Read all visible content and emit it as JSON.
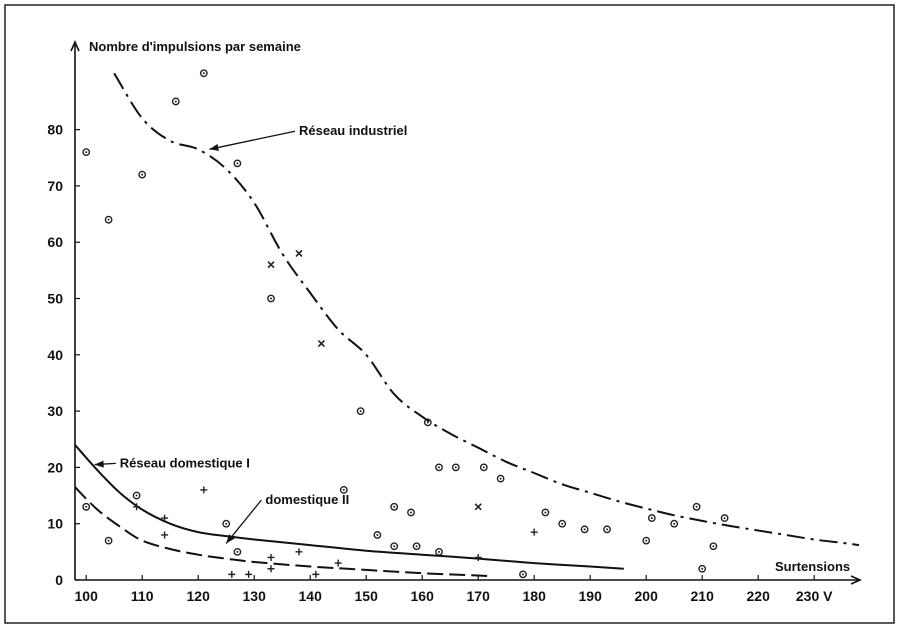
{
  "chart_data": {
    "type": "scatter",
    "title": "",
    "ylabel": "Nombre d'impulsions par semaine",
    "xlabel": "Surtensions",
    "x_unit": "V",
    "xlim": [
      98,
      240
    ],
    "ylim": [
      0,
      95
    ],
    "xticks": [
      100,
      110,
      120,
      130,
      140,
      150,
      160,
      170,
      180,
      190,
      200,
      210,
      220,
      230
    ],
    "yticks": [
      0,
      10,
      20,
      30,
      40,
      50,
      60,
      70,
      80
    ],
    "grid": false,
    "legend": "none",
    "curves": [
      {
        "name": "Réseau industriel",
        "style": "dash-dot",
        "points": [
          [
            105,
            90
          ],
          [
            110,
            82
          ],
          [
            115,
            78
          ],
          [
            120,
            76.5
          ],
          [
            125,
            73
          ],
          [
            130,
            67
          ],
          [
            135,
            58
          ],
          [
            140,
            51
          ],
          [
            145,
            44.5
          ],
          [
            150,
            40
          ],
          [
            155,
            33
          ],
          [
            160,
            29
          ],
          [
            165,
            26
          ],
          [
            170,
            23.5
          ],
          [
            175,
            21
          ],
          [
            180,
            19
          ],
          [
            185,
            17
          ],
          [
            190,
            15.5
          ],
          [
            195,
            14
          ],
          [
            200,
            12.7
          ],
          [
            205,
            11.5
          ],
          [
            210,
            10.5
          ],
          [
            215,
            9.6
          ],
          [
            220,
            8.8
          ],
          [
            225,
            8
          ],
          [
            230,
            7.2
          ],
          [
            235,
            6.6
          ],
          [
            238,
            6.2
          ]
        ]
      },
      {
        "name": "Réseau domestique I",
        "style": "solid",
        "points": [
          [
            98,
            24
          ],
          [
            102,
            19.5
          ],
          [
            106,
            15.5
          ],
          [
            110,
            12.5
          ],
          [
            115,
            10
          ],
          [
            120,
            8.5
          ],
          [
            125,
            7.8
          ],
          [
            130,
            7.2
          ],
          [
            140,
            6.2
          ],
          [
            150,
            5.2
          ],
          [
            160,
            4.5
          ],
          [
            170,
            3.8
          ],
          [
            180,
            3
          ],
          [
            190,
            2.4
          ],
          [
            196,
            2
          ]
        ]
      },
      {
        "name": "domestique II",
        "style": "dashed",
        "points": [
          [
            98,
            16.5
          ],
          [
            102,
            12.5
          ],
          [
            106,
            9.5
          ],
          [
            110,
            7
          ],
          [
            115,
            5.5
          ],
          [
            120,
            4.5
          ],
          [
            125,
            3.8
          ],
          [
            130,
            3.2
          ],
          [
            140,
            2.4
          ],
          [
            150,
            1.8
          ],
          [
            160,
            1.2
          ],
          [
            170,
            0.8
          ],
          [
            172,
            0.7
          ]
        ]
      }
    ],
    "annotations": [
      {
        "text": "Réseau industriel",
        "label_at": [
          138,
          79
        ],
        "arrow_to": [
          122,
          76.5
        ]
      },
      {
        "text": "Réseau domestique I",
        "label_at": [
          106,
          20
        ],
        "arrow_to": [
          101.5,
          20.5
        ]
      },
      {
        "text": "domestique II",
        "label_at": [
          132,
          13.5
        ],
        "arrow_to": [
          125,
          6.5
        ]
      }
    ],
    "markers": [
      {
        "x": 100,
        "y": 76,
        "m": "o"
      },
      {
        "x": 104,
        "y": 64,
        "m": "o"
      },
      {
        "x": 110,
        "y": 72,
        "m": "o"
      },
      {
        "x": 116,
        "y": 85,
        "m": "o"
      },
      {
        "x": 121,
        "y": 90,
        "m": "o"
      },
      {
        "x": 127,
        "y": 74,
        "m": "o"
      },
      {
        "x": 133,
        "y": 56,
        "m": "x"
      },
      {
        "x": 133,
        "y": 50,
        "m": "o"
      },
      {
        "x": 138,
        "y": 58,
        "m": "x"
      },
      {
        "x": 142,
        "y": 42,
        "m": "x"
      },
      {
        "x": 149,
        "y": 30,
        "m": "o"
      },
      {
        "x": 161,
        "y": 28,
        "m": "o"
      },
      {
        "x": 163,
        "y": 20,
        "m": "o"
      },
      {
        "x": 166,
        "y": 20,
        "m": "o"
      },
      {
        "x": 171,
        "y": 20,
        "m": "o"
      },
      {
        "x": 174,
        "y": 18,
        "m": "o"
      },
      {
        "x": 170,
        "y": 13,
        "m": "x"
      },
      {
        "x": 182,
        "y": 12,
        "m": "o"
      },
      {
        "x": 185,
        "y": 10,
        "m": "o"
      },
      {
        "x": 189,
        "y": 9,
        "m": "o"
      },
      {
        "x": 193,
        "y": 9,
        "m": "o"
      },
      {
        "x": 200,
        "y": 7,
        "m": "o"
      },
      {
        "x": 201,
        "y": 11,
        "m": "o"
      },
      {
        "x": 205,
        "y": 10,
        "m": "o"
      },
      {
        "x": 209,
        "y": 13,
        "m": "o"
      },
      {
        "x": 210,
        "y": 2,
        "m": "o"
      },
      {
        "x": 212,
        "y": 6,
        "m": "o"
      },
      {
        "x": 214,
        "y": 11,
        "m": "o"
      },
      {
        "x": 100,
        "y": 13,
        "m": "o"
      },
      {
        "x": 104,
        "y": 7,
        "m": "o"
      },
      {
        "x": 109,
        "y": 15,
        "m": "o"
      },
      {
        "x": 109,
        "y": 13,
        "m": "+"
      },
      {
        "x": 114,
        "y": 11,
        "m": "+"
      },
      {
        "x": 114,
        "y": 8,
        "m": "+"
      },
      {
        "x": 121,
        "y": 16,
        "m": "+"
      },
      {
        "x": 125,
        "y": 10,
        "m": "o"
      },
      {
        "x": 146,
        "y": 16,
        "m": "o"
      },
      {
        "x": 152,
        "y": 8,
        "m": "o"
      },
      {
        "x": 155,
        "y": 13,
        "m": "o"
      },
      {
        "x": 155,
        "y": 6,
        "m": "o"
      },
      {
        "x": 158,
        "y": 12,
        "m": "o"
      },
      {
        "x": 159,
        "y": 6,
        "m": "o"
      },
      {
        "x": 163,
        "y": 5,
        "m": "o"
      },
      {
        "x": 170,
        "y": 4,
        "m": "+"
      },
      {
        "x": 178,
        "y": 1,
        "m": "o"
      },
      {
        "x": 180,
        "y": 8.5,
        "m": "+"
      },
      {
        "x": 127,
        "y": 5,
        "m": "o"
      },
      {
        "x": 126,
        "y": 1,
        "m": "+"
      },
      {
        "x": 129,
        "y": 1,
        "m": "+"
      },
      {
        "x": 133,
        "y": 2,
        "m": "+"
      },
      {
        "x": 133,
        "y": 4,
        "m": "+"
      },
      {
        "x": 138,
        "y": 5,
        "m": "+"
      },
      {
        "x": 141,
        "y": 1,
        "m": "+"
      },
      {
        "x": 145,
        "y": 3,
        "m": "+"
      }
    ]
  }
}
